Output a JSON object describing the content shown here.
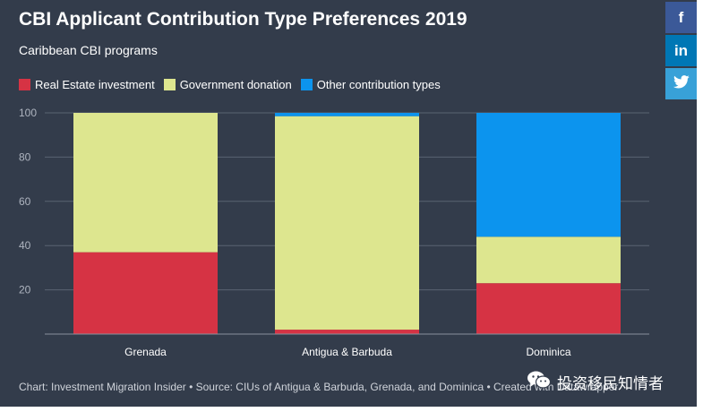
{
  "header": {
    "title": "CBI Applicant Contribution Type Preferences 2019",
    "subtitle": "Caribbean CBI programs"
  },
  "social": {
    "facebook": "f",
    "linkedin": "in",
    "twitter_icon": "twitter-icon"
  },
  "footer": {
    "text": "Chart: Investment Migration Insider • Source: CIUs of Antigua & Barbuda, Grenada, and Dominica • Created with Datawrapper"
  },
  "watermark": {
    "text": "投资移民知情者",
    "icon": "wechat-icon"
  },
  "colors": {
    "background": "#333c4b",
    "real_estate": "#d63344",
    "government": "#dde68f",
    "other": "#0c94ee",
    "facebook": "#3b5998",
    "linkedin": "#0077b5",
    "twitter": "#38a1d8"
  },
  "chart_data": {
    "type": "bar",
    "stacked": true,
    "title": "CBI Applicant Contribution Type Preferences 2019",
    "subtitle": "Caribbean CBI programs",
    "categories": [
      "Grenada",
      "Antigua & Barbuda",
      "Dominica"
    ],
    "series": [
      {
        "name": "Real Estate investment",
        "color": "#d63344",
        "values": [
          37,
          2,
          23
        ]
      },
      {
        "name": "Government donation",
        "color": "#dde68f",
        "values": [
          63,
          96.5,
          21
        ]
      },
      {
        "name": "Other contribution types",
        "color": "#0c94ee",
        "values": [
          0,
          1.5,
          56
        ]
      }
    ],
    "ylim": [
      0,
      100
    ],
    "yticks": [
      20,
      40,
      60,
      80,
      100
    ],
    "xlabel": "",
    "ylabel": "",
    "grid": true,
    "legend": "top-left"
  }
}
